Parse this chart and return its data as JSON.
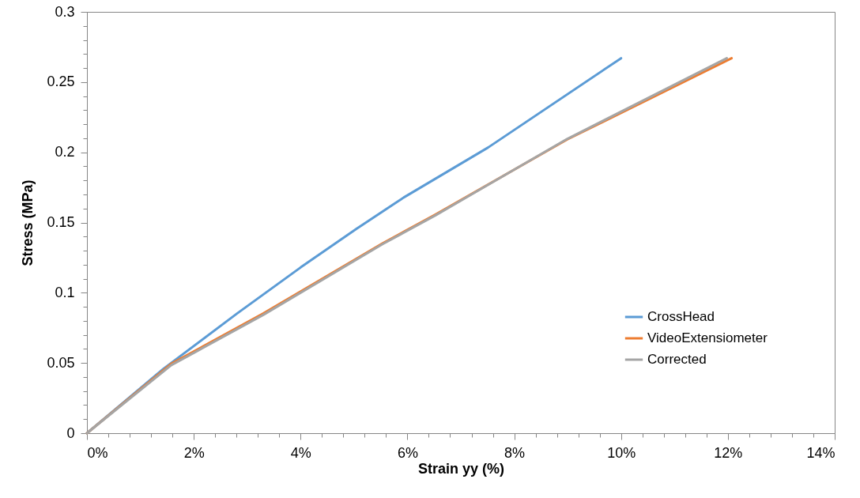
{
  "chart_data": {
    "type": "line",
    "xlabel": "Strain yy (%)",
    "ylabel": "Stress (MPa)",
    "xlim": [
      0,
      14
    ],
    "ylim": [
      0,
      0.3
    ],
    "xticks": [
      {
        "value": 0,
        "label": "0%"
      },
      {
        "value": 0.4,
        "label": null
      },
      {
        "value": 0.8,
        "label": null
      },
      {
        "value": 1.2,
        "label": null
      },
      {
        "value": 1.6,
        "label": null
      },
      {
        "value": 2,
        "label": "2%"
      },
      {
        "value": 2.4,
        "label": null
      },
      {
        "value": 2.8,
        "label": null
      },
      {
        "value": 3.2,
        "label": null
      },
      {
        "value": 3.6,
        "label": null
      },
      {
        "value": 4,
        "label": "4%"
      },
      {
        "value": 4.4,
        "label": null
      },
      {
        "value": 4.8,
        "label": null
      },
      {
        "value": 5.2,
        "label": null
      },
      {
        "value": 5.6,
        "label": null
      },
      {
        "value": 6,
        "label": "6%"
      },
      {
        "value": 6.4,
        "label": null
      },
      {
        "value": 6.8,
        "label": null
      },
      {
        "value": 7.2,
        "label": null
      },
      {
        "value": 7.6,
        "label": null
      },
      {
        "value": 8,
        "label": "8%"
      },
      {
        "value": 8.4,
        "label": null
      },
      {
        "value": 8.8,
        "label": null
      },
      {
        "value": 9.2,
        "label": null
      },
      {
        "value": 9.6,
        "label": null
      },
      {
        "value": 10,
        "label": "10%"
      },
      {
        "value": 10.4,
        "label": null
      },
      {
        "value": 10.8,
        "label": null
      },
      {
        "value": 11.2,
        "label": null
      },
      {
        "value": 11.6,
        "label": null
      },
      {
        "value": 12,
        "label": "12%"
      },
      {
        "value": 12.4,
        "label": null
      },
      {
        "value": 12.8,
        "label": null
      },
      {
        "value": 13.2,
        "label": null
      },
      {
        "value": 13.6,
        "label": null
      },
      {
        "value": 14,
        "label": "14%"
      }
    ],
    "yticks": [
      0,
      {
        "value": 0.01,
        "label": null
      },
      {
        "value": 0.02,
        "label": null
      },
      {
        "value": 0.03,
        "label": null
      },
      {
        "value": 0.04,
        "label": null
      },
      0.05,
      {
        "value": 0.06,
        "label": null
      },
      {
        "value": 0.07,
        "label": null
      },
      {
        "value": 0.08,
        "label": null
      },
      {
        "value": 0.09,
        "label": null
      },
      0.1,
      {
        "value": 0.11,
        "label": null
      },
      {
        "value": 0.12,
        "label": null
      },
      {
        "value": 0.13,
        "label": null
      },
      {
        "value": 0.14,
        "label": null
      },
      0.15,
      {
        "value": 0.16,
        "label": null
      },
      {
        "value": 0.17,
        "label": null
      },
      {
        "value": 0.18,
        "label": null
      },
      {
        "value": 0.19,
        "label": null
      },
      0.2,
      {
        "value": 0.21,
        "label": null
      },
      {
        "value": 0.22,
        "label": null
      },
      {
        "value": 0.23,
        "label": null
      },
      {
        "value": 0.24,
        "label": null
      },
      0.25,
      {
        "value": 0.26,
        "label": null
      },
      {
        "value": 0.27,
        "label": null
      },
      {
        "value": 0.28,
        "label": null
      },
      {
        "value": 0.29,
        "label": null
      },
      0.3
    ],
    "legend": "bottom right",
    "marker": "none",
    "line_style": "solid",
    "series": [
      {
        "name": "CrossHead",
        "color": "#5b9bd5",
        "x": [
          0,
          1.43,
          2.81,
          4.0,
          5.04,
          5.93,
          7.51,
          10.0
        ],
        "values": [
          0,
          0.0458,
          0.0852,
          0.118,
          0.1453,
          0.1678,
          0.2034,
          0.267
        ]
      },
      {
        "name": "VideoExtensiometer",
        "color": "#ed7d31",
        "x": [
          0,
          1.58,
          3.3,
          5.53,
          6.52,
          8.99,
          12.07
        ],
        "values": [
          0,
          0.0495,
          0.0852,
          0.1351,
          0.1556,
          0.2091,
          0.267
        ]
      },
      {
        "name": "Corrected",
        "color": "#a5a5a5",
        "x": [
          0,
          1.58,
          3.3,
          5.53,
          6.52,
          8.99,
          11.98
        ],
        "values": [
          0,
          0.0485,
          0.0842,
          0.1345,
          0.155,
          0.2095,
          0.267
        ]
      }
    ]
  }
}
